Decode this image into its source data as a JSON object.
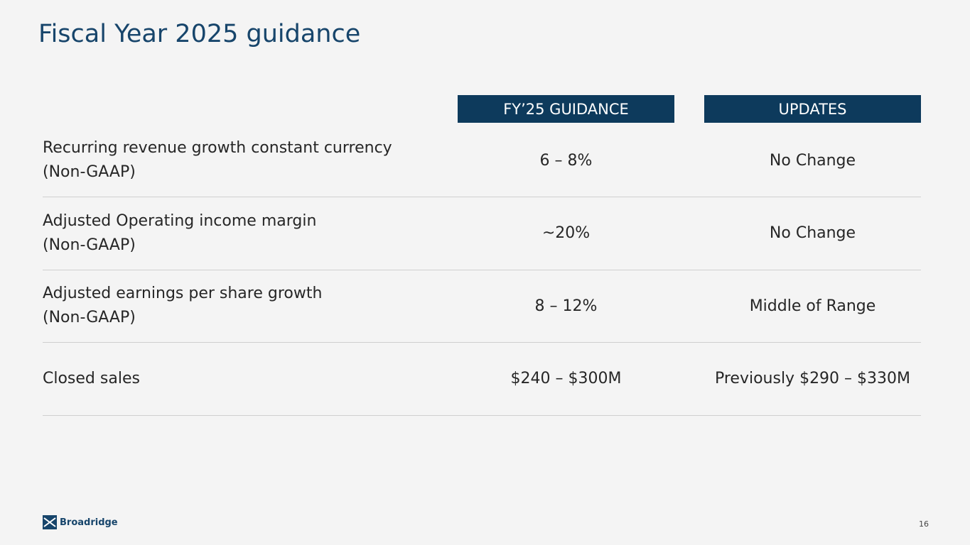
{
  "title": "Fiscal Year 2025 guidance",
  "table": {
    "headers": [
      "FY’25 GUIDANCE",
      "UPDATES"
    ],
    "rows": [
      {
        "label": [
          "Recurring revenue growth constant currency",
          "(Non-GAAP)"
        ],
        "guidance": "6 – 8%",
        "update": "No Change"
      },
      {
        "label": [
          "Adjusted Operating income margin",
          "(Non-GAAP)"
        ],
        "guidance": "~20%",
        "update": "No Change"
      },
      {
        "label": [
          "Adjusted earnings per share growth",
          "(Non-GAAP)"
        ],
        "guidance": "8 – 12%",
        "update": "Middle of Range"
      },
      {
        "label": [
          "Closed sales"
        ],
        "guidance": "$240 – $300M",
        "update": "Previously $290 – $330M"
      }
    ]
  },
  "footer": {
    "logo": "Broadridge",
    "page": "16"
  }
}
